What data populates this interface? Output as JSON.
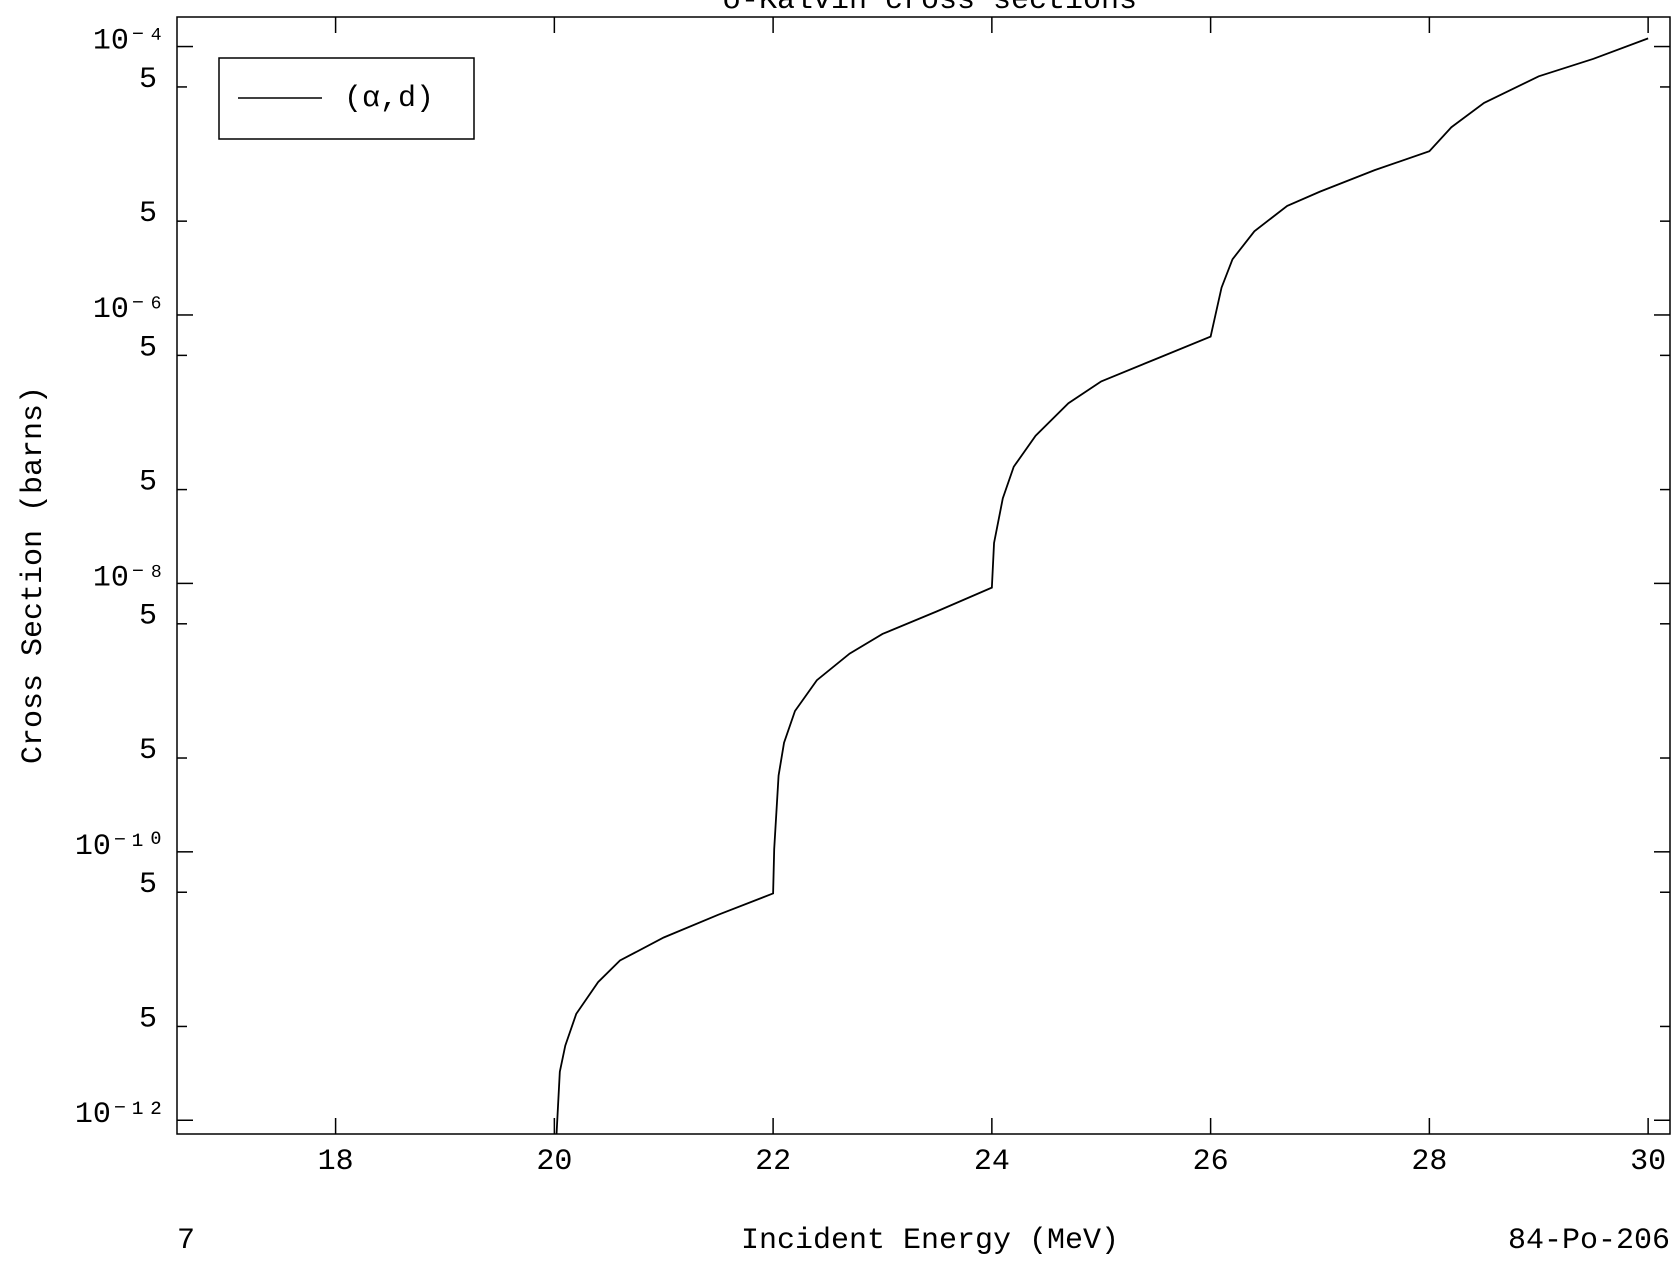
{
  "chart_data": {
    "type": "line",
    "title": "σ-Kalvin cross sections",
    "x_label": "Incident Energy (MeV)",
    "y_label": "Cross Section (barns)",
    "corner_left": "7",
    "corner_right": "84-Po-206",
    "y_log": true,
    "legend": "upper left",
    "xlim": [
      16.55,
      30.2
    ],
    "xticks": [
      18,
      20,
      22,
      24,
      26,
      28,
      30
    ],
    "ylim": [
      7.9e-13,
      0.000166
    ],
    "yticks": [
      {
        "value": 0.0001,
        "label": "10⁻⁴"
      },
      {
        "value": 5e-05,
        "label": "5"
      },
      {
        "value": 5e-06,
        "label": "5"
      },
      {
        "value": 1e-06,
        "label": "10⁻⁶"
      },
      {
        "value": 5e-07,
        "label": "5"
      },
      {
        "value": 5e-08,
        "label": "5"
      },
      {
        "value": 1e-08,
        "label": "10⁻⁸"
      },
      {
        "value": 5e-09,
        "label": "5"
      },
      {
        "value": 5e-10,
        "label": "5"
      },
      {
        "value": 1e-10,
        "label": "10⁻¹⁰"
      },
      {
        "value": 5e-11,
        "label": "5"
      },
      {
        "value": 5e-12,
        "label": "5"
      },
      {
        "value": 1e-12,
        "label": "10⁻¹²"
      }
    ],
    "series": [
      {
        "name": "(α,d)",
        "color": "#000000",
        "x": [
          20.02,
          20.05,
          20.1,
          20.2,
          20.4,
          20.6,
          21.0,
          21.5,
          22.0,
          22.01,
          22.05,
          22.1,
          22.2,
          22.4,
          22.7,
          23.0,
          23.5,
          24.0,
          24.02,
          24.1,
          24.2,
          24.4,
          24.7,
          25.0,
          25.5,
          26.0,
          26.1,
          26.2,
          26.4,
          26.7,
          27.0,
          27.5,
          28.0,
          28.2,
          28.5,
          29.0,
          29.5,
          30.0
        ],
        "values": [
          7.9e-13,
          2.3e-12,
          3.6e-12,
          6.2e-12,
          1.07e-11,
          1.55e-11,
          2.3e-11,
          3.4e-11,
          4.9e-11,
          1.05e-10,
          3.7e-10,
          6.5e-10,
          1.12e-09,
          1.9e-09,
          3e-09,
          4.2e-09,
          6.2e-09,
          9.3e-09,
          2e-08,
          4.3e-08,
          7.4e-08,
          1.26e-07,
          2.2e-07,
          3.2e-07,
          4.7e-07,
          6.9e-07,
          1.6e-06,
          2.6e-06,
          4.2e-06,
          6.5e-06,
          8.3e-06,
          1.2e-05,
          1.66e-05,
          2.5e-05,
          3.8e-05,
          6e-05,
          8.1e-05,
          0.000115
        ]
      }
    ]
  }
}
